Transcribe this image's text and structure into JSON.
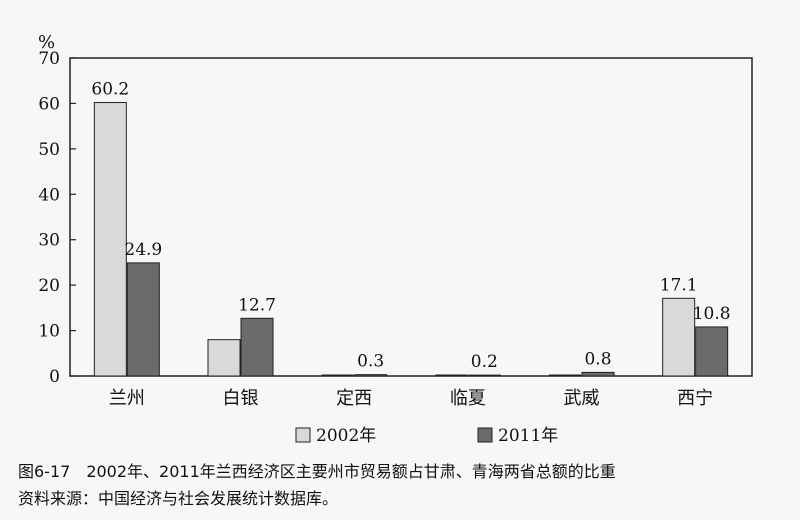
{
  "chart_data": {
    "type": "bar",
    "ylabel": "%",
    "ylim": [
      0,
      70
    ],
    "yticks": [
      0,
      10,
      20,
      30,
      40,
      50,
      60,
      70
    ],
    "grid": false,
    "legend": "bottom",
    "categories": [
      "兰州",
      "白银",
      "定西",
      "临夏",
      "武威",
      "西宁"
    ],
    "series": [
      {
        "name": "2002年",
        "color": "#d9d9d9",
        "values": [
          60.2,
          8.0,
          0.0,
          0.0,
          0.0,
          17.1
        ],
        "labels": [
          "60.2",
          "",
          "",
          "",
          "",
          "17.1"
        ]
      },
      {
        "name": "2011年",
        "color": "#6b6b6b",
        "values": [
          24.9,
          12.7,
          0.3,
          0.2,
          0.8,
          10.8
        ],
        "labels": [
          "24.9",
          "12.7",
          "0.3",
          "0.2",
          "0.8",
          "10.8"
        ]
      }
    ]
  },
  "caption": {
    "figure": "图6-17　2002年、2011年兰西经济区主要州市贸易额占甘肃、青海两省总额的比重",
    "source": "资料来源：中国经济与社会发展统计数据库。"
  }
}
